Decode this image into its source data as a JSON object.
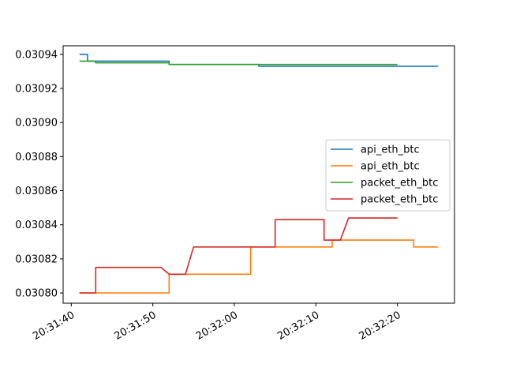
{
  "chart_data": {
    "type": "line",
    "title": "",
    "xlabel": "",
    "ylabel": "",
    "xlim": [
      "20:31:39",
      "20:32:27"
    ],
    "ylim": [
      0.030794,
      0.030945
    ],
    "grid": false,
    "legend_position": "center-right",
    "x_ticks": [
      "20:31:40",
      "20:31:50",
      "20:32:00",
      "20:32:10",
      "20:32:20"
    ],
    "y_ticks": [
      "0.03080",
      "0.03082",
      "0.03084",
      "0.03086",
      "0.03088",
      "0.03090",
      "0.03092",
      "0.03094"
    ],
    "series": [
      {
        "name": "api_eth_btc",
        "color": "#1f77b4",
        "points": [
          [
            "20:31:41",
            0.03094
          ],
          [
            "20:31:42",
            0.03094
          ],
          [
            "20:31:42",
            0.030936
          ],
          [
            "20:31:52",
            0.030936
          ],
          [
            "20:31:52",
            0.030934
          ],
          [
            "20:32:03",
            0.030934
          ],
          [
            "20:32:03",
            0.030933
          ],
          [
            "20:32:12",
            0.030933
          ],
          [
            "20:32:12",
            0.030933
          ],
          [
            "20:32:22",
            0.030933
          ],
          [
            "20:32:22",
            0.030933
          ],
          [
            "20:32:25",
            0.030933
          ]
        ]
      },
      {
        "name": "api_eth_btc",
        "color": "#ff7f0e",
        "points": [
          [
            "20:31:41",
            0.0308
          ],
          [
            "20:31:52",
            0.0308
          ],
          [
            "20:31:52",
            0.030811
          ],
          [
            "20:32:02",
            0.030811
          ],
          [
            "20:32:02",
            0.030827
          ],
          [
            "20:32:12",
            0.030827
          ],
          [
            "20:32:12",
            0.030831
          ],
          [
            "20:32:22",
            0.030831
          ],
          [
            "20:32:22",
            0.030827
          ],
          [
            "20:32:25",
            0.030827
          ]
        ]
      },
      {
        "name": "packet_eth_btc",
        "color": "#2ca02c",
        "points": [
          [
            "20:31:41",
            0.030936
          ],
          [
            "20:31:43",
            0.030936
          ],
          [
            "20:31:43",
            0.030935
          ],
          [
            "20:31:52",
            0.030935
          ],
          [
            "20:31:52",
            0.030934
          ],
          [
            "20:32:02",
            0.030934
          ],
          [
            "20:32:02",
            0.030934
          ],
          [
            "20:32:10",
            0.030934
          ],
          [
            "20:32:10",
            0.030934
          ],
          [
            "20:32:20",
            0.030934
          ]
        ]
      },
      {
        "name": "packet_eth_btc",
        "color": "#d62728",
        "points": [
          [
            "20:31:41",
            0.0308
          ],
          [
            "20:31:43",
            0.0308
          ],
          [
            "20:31:43",
            0.030815
          ],
          [
            "20:31:51",
            0.030815
          ],
          [
            "20:31:52",
            0.030811
          ],
          [
            "20:31:54",
            0.030811
          ],
          [
            "20:31:55",
            0.030827
          ],
          [
            "20:32:05",
            0.030827
          ],
          [
            "20:32:05",
            0.030843
          ],
          [
            "20:32:11",
            0.030843
          ],
          [
            "20:32:11",
            0.030831
          ],
          [
            "20:32:13",
            0.030831
          ],
          [
            "20:32:14",
            0.030844
          ],
          [
            "20:32:20",
            0.030844
          ]
        ]
      }
    ]
  }
}
